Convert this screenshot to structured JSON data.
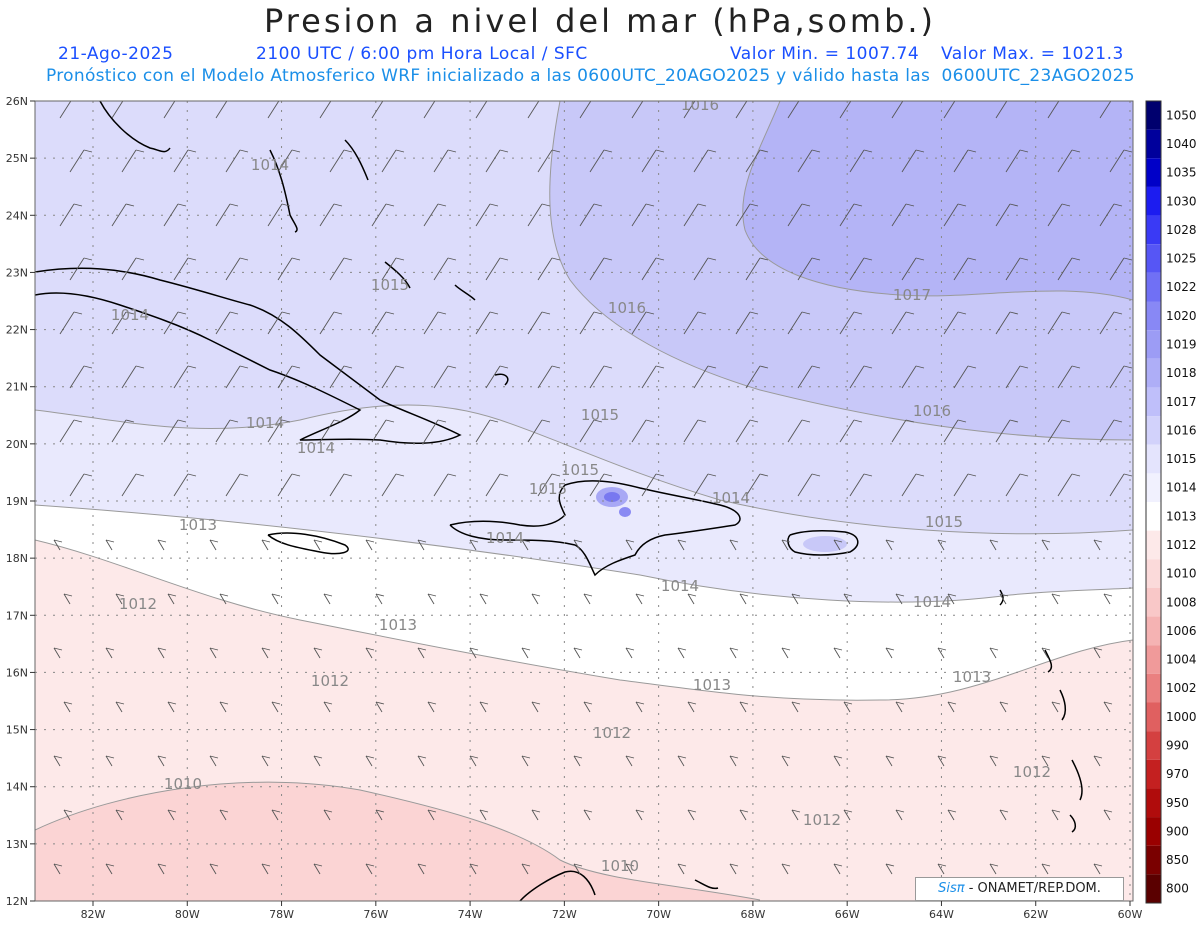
{
  "header": {
    "title": "Presion a nivel del mar (hPa,somb.)",
    "date": "21-Ago-2025",
    "time": "2100 UTC / 6:00 pm Hora Local / SFC",
    "min": "Valor Min. = 1007.74",
    "max": "Valor Max. = 1021.3",
    "model_line": "Pronóstico con el Modelo Atmosferico WRF inicializado a las 0600UTC_20AGO2025 y válido hasta las  0600UTC_23AGO2025"
  },
  "axes": {
    "lat_labels": [
      "26N",
      "25N",
      "24N",
      "23N",
      "22N",
      "21N",
      "20N",
      "19N",
      "18N",
      "17N",
      "16N",
      "15N",
      "14N",
      "13N",
      "12N"
    ],
    "lon_labels": [
      "82W",
      "80W",
      "78W",
      "76W",
      "74W",
      "72W",
      "70W",
      "68W",
      "66W",
      "64W",
      "62W",
      "60W"
    ]
  },
  "colorbar": {
    "levels": [
      "1050",
      "1040",
      "1035",
      "1030",
      "1028",
      "1025",
      "1022",
      "1020",
      "1019",
      "1018",
      "1017",
      "1016",
      "1015",
      "1014",
      "1013",
      "1012",
      "1010",
      "1008",
      "1006",
      "1004",
      "1002",
      "1000",
      "990",
      "970",
      "950",
      "900",
      "850",
      "800"
    ],
    "colors": [
      "#00006e",
      "#00009c",
      "#0000c8",
      "#1c1cf0",
      "#3a3af5",
      "#5656f5",
      "#7070f5",
      "#8888f5",
      "#9c9cf5",
      "#aeaef7",
      "#bfbffa",
      "#d2d2fb",
      "#e4e4fd",
      "#f1f1fe",
      "#ffffff",
      "#fde9e9",
      "#fbdada",
      "#f9c8c8",
      "#f5b3b3",
      "#f09a9a",
      "#ea8080",
      "#e06060",
      "#d44040",
      "#c42020",
      "#b00c0c",
      "#9a0000",
      "#7a0000",
      "#5a0000"
    ]
  },
  "contour_labels": [
    "1016",
    "1014",
    "1015",
    "1016",
    "1014",
    "1017",
    "1016",
    "1015",
    "1014",
    "1014",
    "1015",
    "1014",
    "1015",
    "1015",
    "1014",
    "1013",
    "1014",
    "1014",
    "1012",
    "1013",
    "1012",
    "1013",
    "1013",
    "1012",
    "1012",
    "1010",
    "1012",
    "1010"
  ],
  "colors": {
    "subtitle": "#1a4fff",
    "model_line": "#1b8fe8",
    "land_outline": "#000000",
    "contour": "#999999"
  },
  "credit": {
    "logo": "Sisπ",
    "text": " - ONAMET/REP.DOM."
  }
}
